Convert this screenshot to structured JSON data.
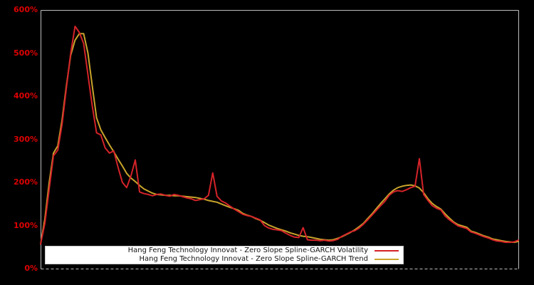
{
  "chart_data": {
    "type": "line",
    "title": "",
    "background_color": "#000000",
    "plot_border_color": "#bdbdbd",
    "tick_label_color": "#dd0000",
    "grid": false,
    "x_axis": {
      "tick_labels_visible": false,
      "labels": []
    },
    "y_axis": {
      "min": 0,
      "max": 600,
      "unit": "%",
      "ticks": [
        {
          "value": 0,
          "label": "0%"
        },
        {
          "value": 100,
          "label": "100%"
        },
        {
          "value": 200,
          "label": "200%"
        },
        {
          "value": 300,
          "label": "300%"
        },
        {
          "value": 400,
          "label": "400%"
        },
        {
          "value": 500,
          "label": "500%"
        },
        {
          "value": 600,
          "label": "600%"
        }
      ]
    },
    "legend": {
      "position": "lower-center",
      "background": "#ffffff"
    },
    "series": [
      {
        "name": "Hang Feng Technology Innovat - Zero Slope Spline-GARCH Volatility",
        "color": "#d42329",
        "line_width": 2,
        "values": [
          57,
          105,
          185,
          262,
          275,
          335,
          420,
          500,
          562,
          548,
          522,
          450,
          378,
          315,
          310,
          280,
          268,
          273,
          235,
          200,
          188,
          215,
          252,
          178,
          174,
          172,
          169,
          172,
          173,
          170,
          168,
          172,
          170,
          167,
          164,
          162,
          158,
          160,
          162,
          170,
          222,
          168,
          157,
          152,
          145,
          138,
          132,
          126,
          123,
          121,
          117,
          113,
          100,
          94,
          91,
          90,
          88,
          82,
          77,
          73,
          72,
          95,
          67,
          66,
          66,
          65,
          66,
          64,
          65,
          68,
          75,
          80,
          85,
          88,
          94,
          103,
          113,
          124,
          135,
          146,
          156,
          170,
          178,
          181,
          179,
          183,
          188,
          191,
          255,
          172,
          158,
          146,
          140,
          136,
          122,
          113,
          106,
          99,
          96,
          93,
          85,
          82,
          78,
          74,
          71,
          67,
          64,
          63,
          61,
          61,
          62,
          66
        ]
      },
      {
        "name": "Hang Feng Technology Innovat - Zero Slope Spline-GARCH Trend",
        "color": "#c9a42b",
        "line_width": 2,
        "values": [
          57,
          115,
          200,
          268,
          285,
          345,
          425,
          495,
          530,
          545,
          545,
          500,
          425,
          350,
          322,
          304,
          287,
          271,
          254,
          238,
          221,
          210,
          202,
          193,
          185,
          180,
          175,
          172,
          171,
          170,
          170,
          169,
          169,
          168,
          167,
          166,
          165,
          163,
          161,
          158,
          156,
          154,
          150,
          146,
          142,
          139,
          135,
          128,
          124,
          121,
          116,
          112,
          107,
          101,
          97,
          93,
          90,
          87,
          83,
          80,
          77,
          75,
          74,
          72,
          70,
          68,
          67,
          66,
          67,
          70,
          74,
          79,
          84,
          90,
          97,
          105,
          116,
          127,
          139,
          151,
          162,
          173,
          182,
          188,
          191,
          193,
          194,
          192,
          187,
          176,
          162,
          151,
          144,
          138,
          127,
          117,
          108,
          102,
          99,
          96,
          87,
          84,
          80,
          76,
          73,
          69,
          67,
          65,
          63,
          62,
          61,
          63
        ]
      }
    ]
  }
}
